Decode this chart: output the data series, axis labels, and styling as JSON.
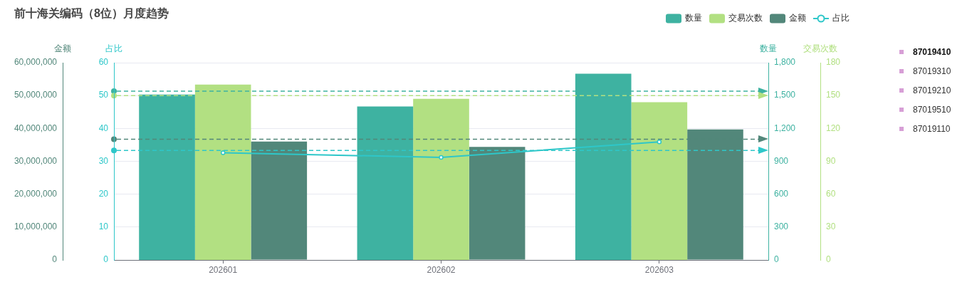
{
  "chart_data": [
    {
      "type": "bar",
      "title": "前十海关编码（8位）月度趋势",
      "categories": [
        "202601",
        "202602",
        "202603"
      ],
      "series": [
        {
          "name": "数量",
          "axis": "y2",
          "color": "#3eb2a1",
          "values": [
            1510,
            1400,
            1700
          ]
        },
        {
          "name": "交易次数",
          "axis": "y3",
          "color": "#b2e082",
          "values": [
            160,
            147,
            144
          ]
        },
        {
          "name": "金额",
          "color": "#52877a",
          "values": [
            36000000,
            34400000,
            39700000
          ]
        }
      ],
      "ylabel": "金额",
      "ylim": [
        0,
        60000000
      ],
      "yticks": [
        0,
        {
          "value": 10000000,
          "label": "10,000,000"
        },
        {
          "value": 20000000,
          "label": "20,000,000"
        },
        {
          "value": 30000000,
          "label": "30,000,000"
        },
        {
          "value": 40000000,
          "label": "40,000,000"
        },
        {
          "value": 50000000,
          "label": "50,000,000"
        },
        {
          "value": 60000000,
          "label": "60,000,000"
        }
      ],
      "y2label": "数量",
      "y2lim": [
        0,
        1800
      ],
      "y2ticks": [
        0,
        300,
        600,
        900,
        {
          "value": 1200,
          "label": "1,200"
        },
        {
          "value": 1500,
          "label": "1,500"
        },
        {
          "value": 1800,
          "label": "1,800"
        }
      ],
      "y3label": "交易次数",
      "y3lim": [
        0,
        180
      ],
      "y3ticks": [
        0,
        30,
        60,
        90,
        120,
        150,
        180
      ],
      "ref_lines": [
        {
          "axis": "y2",
          "value": 1540,
          "color": "#3eb2a1",
          "line_style": "dashed"
        },
        {
          "axis": "y3",
          "value": 150,
          "color": "#b2e082",
          "line_style": "dashed"
        },
        {
          "axis": "y",
          "value": 36700000,
          "color": "#52877a",
          "line_style": "dashed"
        }
      ],
      "annotations": [
        "87019410",
        "87019310",
        "87019210",
        "87019510",
        "87019110"
      ],
      "grid": "y",
      "legend": "top right"
    },
    {
      "type": "line",
      "categories": [
        "202601",
        "202602",
        "202603"
      ],
      "series": [
        {
          "name": "占比",
          "color": "#2ec7c9",
          "values": [
            32.6,
            31.2,
            35.9
          ]
        }
      ],
      "ylabel": "占比",
      "ylim": [
        0,
        60
      ],
      "yticks": [
        0,
        10,
        20,
        30,
        40,
        50,
        60
      ],
      "ref_lines": [
        {
          "axis": "y",
          "value": 33.3,
          "color": "#2ec7c9",
          "line_style": "dashed"
        }
      ],
      "tick_labels": "y",
      "legend": "top right",
      "marker": "circle"
    }
  ]
}
